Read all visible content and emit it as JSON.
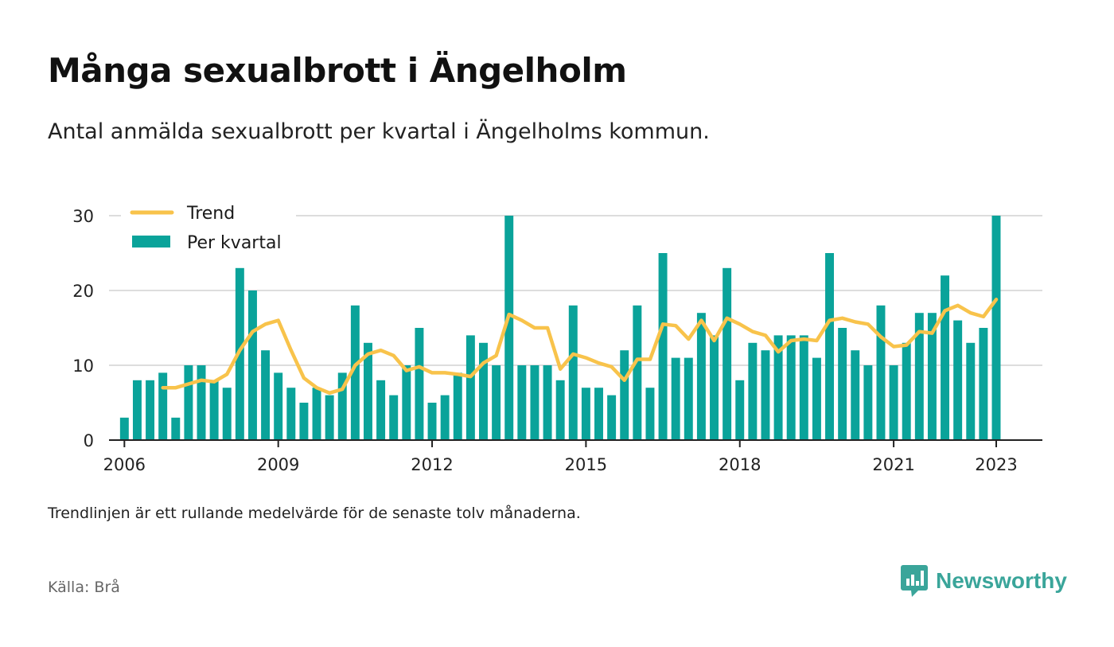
{
  "title": "Många sexualbrott i Ängelholm",
  "subtitle": "Antal anmälda sexualbrott per kvartal i Ängelholms kommun.",
  "note": "Trendlinjen är ett rullande medelvärde för de senaste tolv månaderna.",
  "source": "Källa: Brå",
  "brand": {
    "name": "Newsworthy",
    "icon": "newsworthy-logo-icon",
    "color": "#3aa59a"
  },
  "colors": {
    "bar": "#0aa39a",
    "trend": "#f8c34b",
    "grid": "#dddddd",
    "axis": "#222222"
  },
  "chart_data": {
    "type": "bar",
    "x_start": 2006.0,
    "x_step": 0.25,
    "xlim": [
      2005.7,
      2023.9
    ],
    "ylim": [
      0,
      30
    ],
    "yticks": [
      "0",
      "10",
      "20",
      "30"
    ],
    "xticks": [
      "2006",
      "2009",
      "2012",
      "2015",
      "2018",
      "2021",
      "2023"
    ],
    "grid": true,
    "legend_position": "top-left",
    "series": [
      {
        "name": "Per kvartal",
        "type": "bar",
        "values": [
          3,
          8,
          8,
          9,
          3,
          10,
          10,
          8,
          7,
          23,
          20,
          12,
          9,
          7,
          5,
          7,
          6,
          9,
          18,
          13,
          8,
          6,
          10,
          15,
          5,
          6,
          9,
          14,
          13,
          10,
          30,
          10,
          10,
          10,
          8,
          18,
          7,
          7,
          6,
          12,
          18,
          7,
          25,
          11,
          11,
          17,
          14,
          23,
          8,
          13,
          12,
          14,
          14,
          14,
          11,
          25,
          15,
          12,
          10,
          18,
          10,
          13,
          17,
          17,
          22,
          16,
          13,
          15,
          30
        ]
      },
      {
        "name": "Trend",
        "type": "line",
        "values": [
          null,
          null,
          null,
          7.0,
          7.0,
          7.5,
          8.0,
          7.8,
          8.8,
          12.0,
          14.5,
          15.5,
          16.0,
          12.0,
          8.3,
          7.0,
          6.3,
          6.8,
          10.0,
          11.5,
          12.0,
          11.3,
          9.3,
          9.8,
          9.0,
          9.0,
          8.8,
          8.5,
          10.3,
          11.3,
          16.8,
          16.0,
          15.0,
          15.0,
          9.5,
          11.5,
          11.0,
          10.3,
          9.8,
          8.0,
          10.8,
          10.8,
          15.5,
          15.3,
          13.5,
          16.0,
          13.3,
          16.3,
          15.5,
          14.5,
          14.0,
          11.8,
          13.3,
          13.5,
          13.3,
          16.0,
          16.3,
          15.8,
          15.5,
          13.8,
          12.5,
          12.7,
          14.5,
          14.3,
          17.3,
          18.0,
          17.0,
          16.5,
          18.8
        ]
      }
    ]
  }
}
